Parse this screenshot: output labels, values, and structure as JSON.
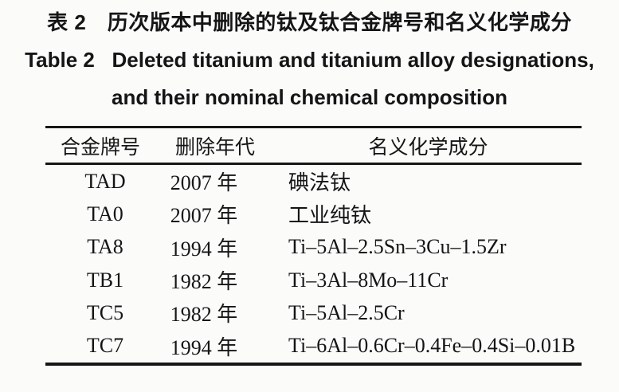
{
  "page": {
    "kind": "scanned-paper-table",
    "background_color": "#fbfbfa",
    "text_color": "#151515",
    "rule_color": "#161616"
  },
  "title": {
    "zh": "表 2　历次版本中删除的钛及钛合金牌号和名义化学成分",
    "en_line1": "Table 2   Deleted titanium and titanium alloy designations,",
    "en_line2": "and their nominal chemical composition"
  },
  "table": {
    "columns": {
      "designation": "合金牌号",
      "year": "删除年代",
      "composition": "名义化学成分"
    },
    "rows": [
      {
        "designation": "TAD",
        "year": "2007 年",
        "composition": "碘法钛"
      },
      {
        "designation": "TA0",
        "year": "2007 年",
        "composition": "工业纯钛"
      },
      {
        "designation": "TA8",
        "year": "1994 年",
        "composition": "Ti–5Al–2.5Sn–3Cu–1.5Zr"
      },
      {
        "designation": "TB1",
        "year": "1982 年",
        "composition": "Ti–3Al–8Mo–11Cr"
      },
      {
        "designation": "TC5",
        "year": "1982 年",
        "composition": "Ti–5Al–2.5Cr"
      },
      {
        "designation": "TC7",
        "year": "1994 年",
        "composition": "Ti–6Al–0.6Cr–0.4Fe–0.4Si–0.01B"
      }
    ]
  }
}
